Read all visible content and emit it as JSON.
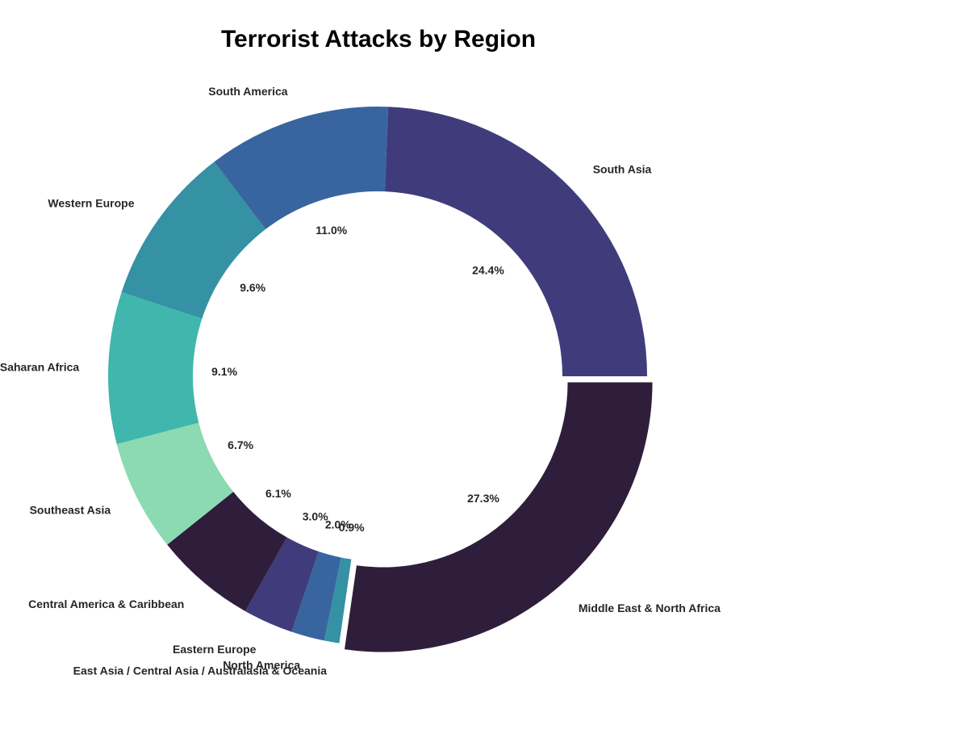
{
  "chart_data": {
    "type": "pie",
    "variant": "donut",
    "title": "Terrorist Attacks by Region",
    "categories": [
      "Middle East & North Africa",
      "East Asia / Central Asia / Australasia & Oceania",
      "North America",
      "Eastern Europe",
      "Central America & Caribbean",
      "Southeast Asia",
      "Sub-Saharan Africa",
      "Western Europe",
      "South America",
      "South Asia"
    ],
    "values": [
      27.3,
      0.9,
      2.0,
      3.0,
      6.1,
      6.7,
      9.1,
      9.6,
      11.0,
      24.4
    ],
    "percent_labels": [
      "27.3%",
      "0.9%",
      "2.0%",
      "3.0%",
      "6.1%",
      "6.7%",
      "9.1%",
      "9.6%",
      "11.0%",
      "24.4%"
    ],
    "colors": [
      "#2e1e3b",
      "#3591a4",
      "#3865a0",
      "#403c7b",
      "#2e1e3b",
      "#8bdab2",
      "#41b6ac",
      "#3591a4",
      "#3865a0",
      "#403c7b"
    ],
    "exploded": [
      "Middle East & North Africa"
    ],
    "start_angle_deg": 0,
    "direction": "clockwise",
    "legend": "none"
  }
}
